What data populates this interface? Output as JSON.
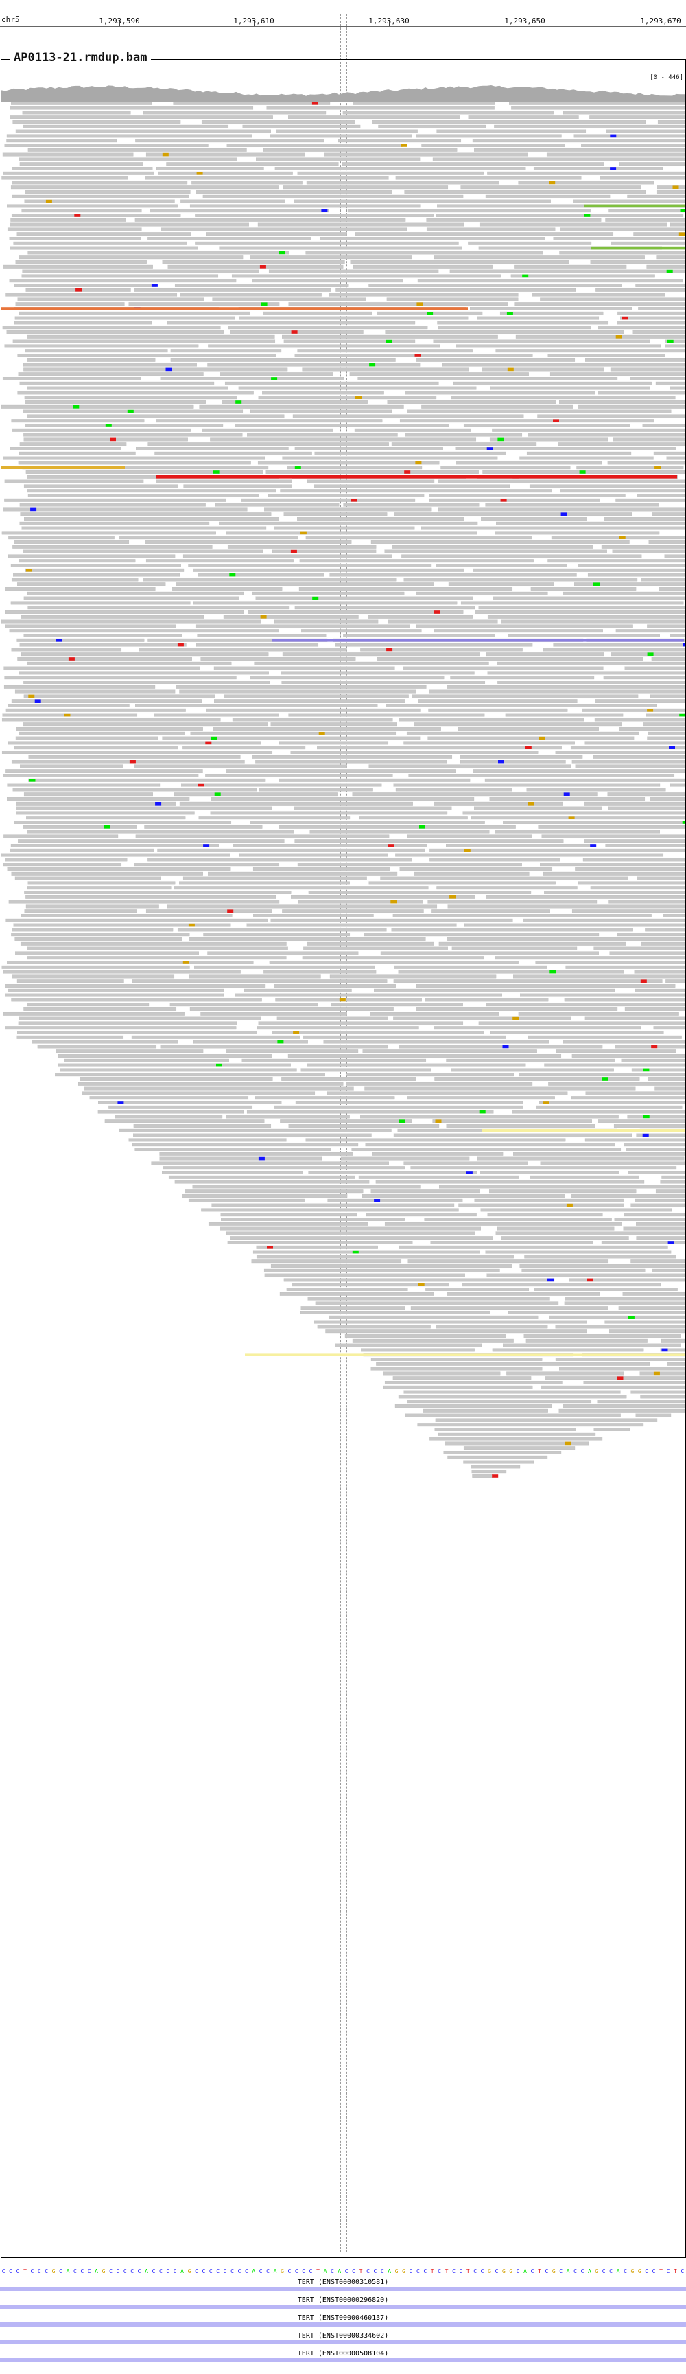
{
  "ruler": {
    "chromosome": "chr5",
    "ticks": [
      "1,293,590",
      "1,293,610",
      "1,293,630",
      "1,293,650",
      "1,293,670"
    ]
  },
  "track": {
    "title": "AP0113-21.rmdup.bam",
    "coverage_range": "[0 - 446]"
  },
  "colors": {
    "read": "#c8c8c8",
    "read_border": "#b4b4b4",
    "mismatch_A": "#00e600",
    "mismatch_C": "#1414ff",
    "mismatch_G": "#d4a000",
    "mismatch_T": "#e41a1a",
    "insertion": "#8a2be2",
    "coverage": "#a9a9a9",
    "gene": "#b9b6f6"
  },
  "sequence": "CCCTCCCGCACCCAGCCCCCACCCCAGCCCCCCCCACCAGCCCCTACACCTCCCAGGCCCTCTCCTCCGCGGCACTCGCACCAGCCACGGCCTCTC",
  "genes": [
    "TERT (ENST00000310581)",
    "TERT (ENST00000296820)",
    "TERT (ENST00000460137)",
    "TERT (ENST00000334602)",
    "TERT (ENST00000508104)"
  ]
}
